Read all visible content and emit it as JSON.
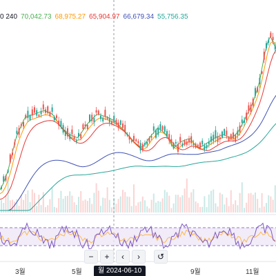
{
  "legend": {
    "period": "0 240",
    "ma_values": [
      {
        "text": "70,042.73",
        "color": "#4caf50"
      },
      {
        "text": "68,975.27",
        "color": "#ff9800"
      },
      {
        "text": "65,904.97",
        "color": "#e53935"
      },
      {
        "text": "66,679.34",
        "color": "#3f51b5"
      },
      {
        "text": "55,756.35",
        "color": "#26a69a"
      }
    ]
  },
  "time_axis": {
    "labels": [
      "3월",
      "5월",
      "9월",
      "11월"
    ],
    "tooltip": "월  2024-06-10"
  },
  "toolbar": {
    "zoom_out": "−",
    "zoom_in": "+",
    "scroll_left": "‹",
    "scroll_right": "›",
    "reset": "↺"
  },
  "colors": {
    "candle_up": "#26a69a",
    "candle_down": "#ef5350",
    "ma_short": "#4caf50",
    "ma_mid": "#ff9800",
    "ma_long": "#e53935",
    "ma_longer": "#3f51b5",
    "ma_longest": "#26a69a",
    "rsi_line": "#7e57c2",
    "rsi_band": "#ede7f6"
  }
}
